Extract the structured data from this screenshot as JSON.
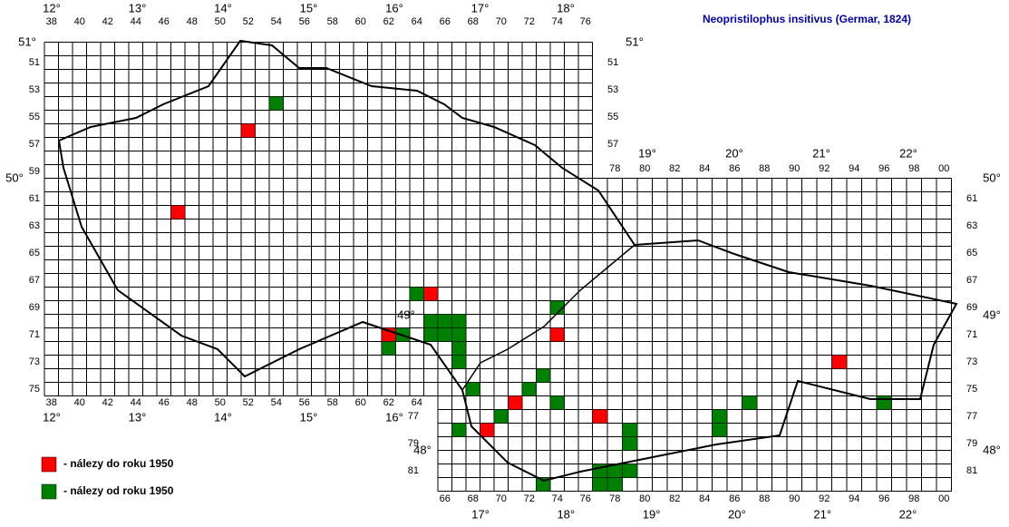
{
  "title": "Neopristilophus insitivus (Germar, 1824)",
  "columns": {
    "top_west": [
      "38",
      "40",
      "42",
      "44",
      "46",
      "48",
      "50",
      "52",
      "54",
      "56",
      "58",
      "60",
      "62",
      "64",
      "66",
      "68",
      "70",
      "72",
      "74",
      "76"
    ],
    "top_east": [
      "78",
      "80",
      "82",
      "84",
      "86",
      "88",
      "90",
      "92",
      "94",
      "96",
      "98",
      "00"
    ],
    "bottom_west": [
      "38",
      "40",
      "42",
      "44",
      "46",
      "48",
      "50",
      "52",
      "54",
      "56",
      "58",
      "60",
      "62",
      "64"
    ],
    "bottom_east": [
      "66",
      "68",
      "70",
      "72",
      "74",
      "76",
      "78",
      "80",
      "82",
      "84",
      "86",
      "88",
      "90",
      "92",
      "94",
      "96",
      "98",
      "00"
    ]
  },
  "rows": {
    "left": [
      51,
      53,
      55,
      57,
      59,
      61,
      63,
      65,
      67,
      69,
      71,
      73,
      75
    ],
    "left_lower": [
      77,
      79,
      81
    ],
    "right_west": [
      51,
      53,
      55,
      57
    ],
    "right_east": [
      61,
      63,
      65,
      67,
      69,
      71,
      73,
      75,
      77,
      79,
      81
    ]
  },
  "degrees": {
    "top_west": [
      "12°",
      "13°",
      "14°",
      "15°",
      "16°",
      "17°",
      "18°"
    ],
    "top_east": [
      "19°",
      "20°",
      "21°",
      "22°"
    ],
    "bottom_west": [
      "12°",
      "13°",
      "14°",
      "15°",
      "16°"
    ],
    "bottom_east": [
      "17°",
      "18°",
      "19°",
      "20°",
      "21°",
      "22°"
    ],
    "latitude": [
      "51°",
      "51°",
      "50°",
      "50°",
      "49°",
      "49°",
      "48°",
      "48°"
    ]
  },
  "legend": [
    {
      "label": "- nálezy do roku 1950",
      "color": "#ff0000"
    },
    {
      "label": "- nálezy od roku 1950",
      "color": "#008000"
    }
  ],
  "findings": [
    {
      "color": "#ff0000",
      "cells": [
        {
          "col": 52,
          "row": 56
        },
        {
          "col": 47,
          "row": 62
        },
        {
          "col": 65,
          "row": 68
        },
        {
          "col": 62,
          "row": 71
        },
        {
          "col": 74,
          "row": 71
        },
        {
          "col": 71,
          "row": 76
        },
        {
          "col": 69,
          "row": 78
        },
        {
          "col": 77,
          "row": 77
        },
        {
          "col": 93,
          "row": 73
        }
      ]
    },
    {
      "color": "#008000",
      "cells": [
        {
          "col": 54,
          "row": 54
        },
        {
          "col": 64,
          "row": 68
        },
        {
          "col": 63,
          "row": 71
        },
        {
          "col": 62,
          "row": 72
        },
        {
          "col": 65,
          "row": 70
        },
        {
          "col": 66,
          "row": 70
        },
        {
          "col": 67,
          "row": 70
        },
        {
          "col": 65,
          "row": 71
        },
        {
          "col": 66,
          "row": 71
        },
        {
          "col": 67,
          "row": 71
        },
        {
          "col": 67,
          "row": 72
        },
        {
          "col": 67,
          "row": 73
        },
        {
          "col": 74,
          "row": 69
        },
        {
          "col": 73,
          "row": 74
        },
        {
          "col": 72,
          "row": 75
        },
        {
          "col": 68,
          "row": 75
        },
        {
          "col": 74,
          "row": 76
        },
        {
          "col": 70,
          "row": 77
        },
        {
          "col": 67,
          "row": 78
        },
        {
          "col": 73,
          "row": 82
        },
        {
          "col": 77,
          "row": 81
        },
        {
          "col": 78,
          "row": 81
        },
        {
          "col": 79,
          "row": 81
        },
        {
          "col": 77,
          "row": 82
        },
        {
          "col": 78,
          "row": 82
        },
        {
          "col": 79,
          "row": 78
        },
        {
          "col": 79,
          "row": 79
        },
        {
          "col": 85,
          "row": 77
        },
        {
          "col": 85,
          "row": 78
        },
        {
          "col": 87,
          "row": 76
        },
        {
          "col": 96,
          "row": 76
        }
      ]
    }
  ]
}
